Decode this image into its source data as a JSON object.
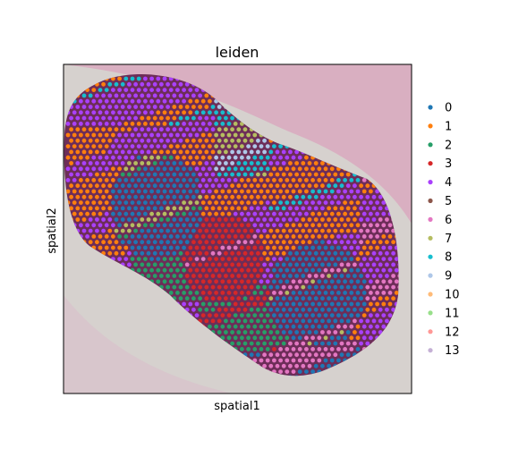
{
  "chart_data": {
    "type": "scatter",
    "title": "leiden",
    "xlabel": "spatial1",
    "ylabel": "spatial2",
    "grid": false,
    "legend_placement": "right",
    "background": "tissue histology image",
    "series": [
      {
        "name": "0",
        "color": "#1f77b4"
      },
      {
        "name": "1",
        "color": "#ff7f0e"
      },
      {
        "name": "2",
        "color": "#279e68"
      },
      {
        "name": "3",
        "color": "#d62728"
      },
      {
        "name": "4",
        "color": "#aa40fc"
      },
      {
        "name": "5",
        "color": "#8c564b"
      },
      {
        "name": "6",
        "color": "#e377c2"
      },
      {
        "name": "7",
        "color": "#b5bd61"
      },
      {
        "name": "8",
        "color": "#17becf"
      },
      {
        "name": "9",
        "color": "#aec7e8"
      },
      {
        "name": "10",
        "color": "#ffbb78"
      },
      {
        "name": "11",
        "color": "#98df8a"
      },
      {
        "name": "12",
        "color": "#ff9896"
      },
      {
        "name": "13",
        "color": "#c5b0d5"
      }
    ]
  }
}
